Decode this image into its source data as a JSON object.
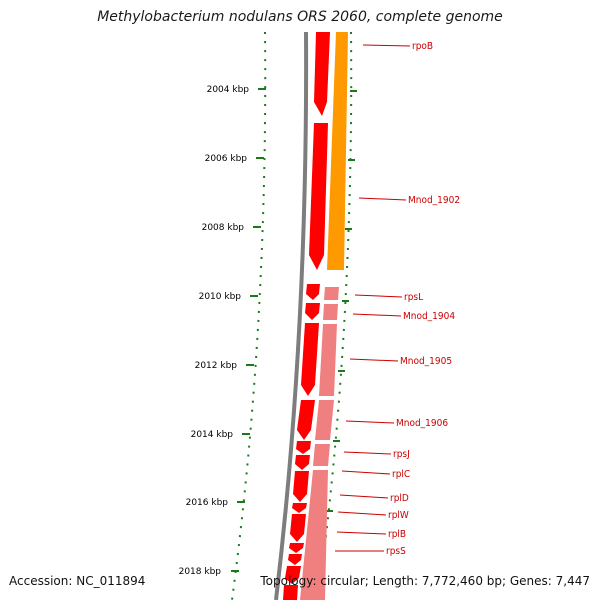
{
  "title": "Methylobacterium nodulans ORS 2060, complete genome",
  "footer": {
    "accession": "Accession: NC_011894",
    "topology": "Topology: circular; Length: 7,772,460 bp; Genes: 7,447"
  },
  "scale_labels": [
    "2004 kbp",
    "2006 kbp",
    "2008 kbp",
    "2010 kbp",
    "2012 kbp",
    "2014 kbp",
    "2016 kbp",
    "2018 kbp"
  ],
  "genes": [
    "rpoB",
    "Mnod_1902",
    "rpsL",
    "Mnod_1904",
    "Mnod_1905",
    "Mnod_1906",
    "rpsJ",
    "rplC",
    "rplD",
    "rplW",
    "rplB",
    "rpsS"
  ],
  "colors": {
    "backbone": "#7d7d7d",
    "scale": "#1a7a1a",
    "gene_red": "#ff0000",
    "gene_orange": "#ff9900",
    "gene_pink": "#f08080",
    "label": "#cc0000"
  }
}
